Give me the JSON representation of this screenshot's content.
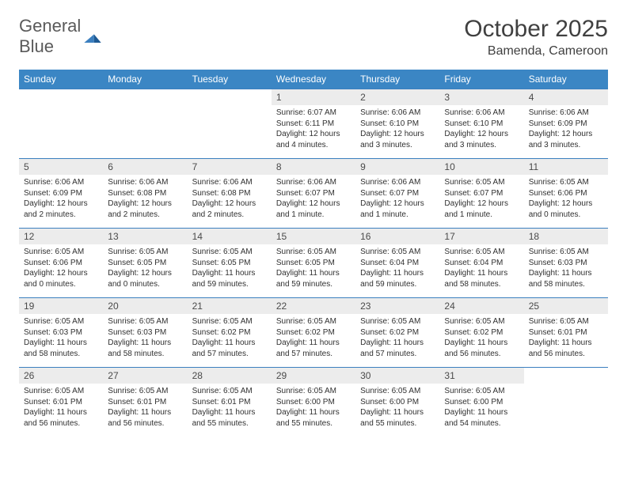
{
  "logo": {
    "text_general": "General",
    "text_blue": "Blue"
  },
  "title": "October 2025",
  "location": "Bamenda, Cameroon",
  "colors": {
    "header_bg": "#3b86c4",
    "header_text": "#ffffff",
    "numrow_bg": "#ececec",
    "border": "#3b7fbf",
    "body_text": "#303030",
    "title_text": "#404040"
  },
  "weekdays": [
    "Sunday",
    "Monday",
    "Tuesday",
    "Wednesday",
    "Thursday",
    "Friday",
    "Saturday"
  ],
  "weeks": [
    [
      {
        "day": "",
        "sunrise": "",
        "sunset": "",
        "daylight": ""
      },
      {
        "day": "",
        "sunrise": "",
        "sunset": "",
        "daylight": ""
      },
      {
        "day": "",
        "sunrise": "",
        "sunset": "",
        "daylight": ""
      },
      {
        "day": "1",
        "sunrise": "Sunrise: 6:07 AM",
        "sunset": "Sunset: 6:11 PM",
        "daylight": "Daylight: 12 hours and 4 minutes."
      },
      {
        "day": "2",
        "sunrise": "Sunrise: 6:06 AM",
        "sunset": "Sunset: 6:10 PM",
        "daylight": "Daylight: 12 hours and 3 minutes."
      },
      {
        "day": "3",
        "sunrise": "Sunrise: 6:06 AM",
        "sunset": "Sunset: 6:10 PM",
        "daylight": "Daylight: 12 hours and 3 minutes."
      },
      {
        "day": "4",
        "sunrise": "Sunrise: 6:06 AM",
        "sunset": "Sunset: 6:09 PM",
        "daylight": "Daylight: 12 hours and 3 minutes."
      }
    ],
    [
      {
        "day": "5",
        "sunrise": "Sunrise: 6:06 AM",
        "sunset": "Sunset: 6:09 PM",
        "daylight": "Daylight: 12 hours and 2 minutes."
      },
      {
        "day": "6",
        "sunrise": "Sunrise: 6:06 AM",
        "sunset": "Sunset: 6:08 PM",
        "daylight": "Daylight: 12 hours and 2 minutes."
      },
      {
        "day": "7",
        "sunrise": "Sunrise: 6:06 AM",
        "sunset": "Sunset: 6:08 PM",
        "daylight": "Daylight: 12 hours and 2 minutes."
      },
      {
        "day": "8",
        "sunrise": "Sunrise: 6:06 AM",
        "sunset": "Sunset: 6:07 PM",
        "daylight": "Daylight: 12 hours and 1 minute."
      },
      {
        "day": "9",
        "sunrise": "Sunrise: 6:06 AM",
        "sunset": "Sunset: 6:07 PM",
        "daylight": "Daylight: 12 hours and 1 minute."
      },
      {
        "day": "10",
        "sunrise": "Sunrise: 6:05 AM",
        "sunset": "Sunset: 6:07 PM",
        "daylight": "Daylight: 12 hours and 1 minute."
      },
      {
        "day": "11",
        "sunrise": "Sunrise: 6:05 AM",
        "sunset": "Sunset: 6:06 PM",
        "daylight": "Daylight: 12 hours and 0 minutes."
      }
    ],
    [
      {
        "day": "12",
        "sunrise": "Sunrise: 6:05 AM",
        "sunset": "Sunset: 6:06 PM",
        "daylight": "Daylight: 12 hours and 0 minutes."
      },
      {
        "day": "13",
        "sunrise": "Sunrise: 6:05 AM",
        "sunset": "Sunset: 6:05 PM",
        "daylight": "Daylight: 12 hours and 0 minutes."
      },
      {
        "day": "14",
        "sunrise": "Sunrise: 6:05 AM",
        "sunset": "Sunset: 6:05 PM",
        "daylight": "Daylight: 11 hours and 59 minutes."
      },
      {
        "day": "15",
        "sunrise": "Sunrise: 6:05 AM",
        "sunset": "Sunset: 6:05 PM",
        "daylight": "Daylight: 11 hours and 59 minutes."
      },
      {
        "day": "16",
        "sunrise": "Sunrise: 6:05 AM",
        "sunset": "Sunset: 6:04 PM",
        "daylight": "Daylight: 11 hours and 59 minutes."
      },
      {
        "day": "17",
        "sunrise": "Sunrise: 6:05 AM",
        "sunset": "Sunset: 6:04 PM",
        "daylight": "Daylight: 11 hours and 58 minutes."
      },
      {
        "day": "18",
        "sunrise": "Sunrise: 6:05 AM",
        "sunset": "Sunset: 6:03 PM",
        "daylight": "Daylight: 11 hours and 58 minutes."
      }
    ],
    [
      {
        "day": "19",
        "sunrise": "Sunrise: 6:05 AM",
        "sunset": "Sunset: 6:03 PM",
        "daylight": "Daylight: 11 hours and 58 minutes."
      },
      {
        "day": "20",
        "sunrise": "Sunrise: 6:05 AM",
        "sunset": "Sunset: 6:03 PM",
        "daylight": "Daylight: 11 hours and 58 minutes."
      },
      {
        "day": "21",
        "sunrise": "Sunrise: 6:05 AM",
        "sunset": "Sunset: 6:02 PM",
        "daylight": "Daylight: 11 hours and 57 minutes."
      },
      {
        "day": "22",
        "sunrise": "Sunrise: 6:05 AM",
        "sunset": "Sunset: 6:02 PM",
        "daylight": "Daylight: 11 hours and 57 minutes."
      },
      {
        "day": "23",
        "sunrise": "Sunrise: 6:05 AM",
        "sunset": "Sunset: 6:02 PM",
        "daylight": "Daylight: 11 hours and 57 minutes."
      },
      {
        "day": "24",
        "sunrise": "Sunrise: 6:05 AM",
        "sunset": "Sunset: 6:02 PM",
        "daylight": "Daylight: 11 hours and 56 minutes."
      },
      {
        "day": "25",
        "sunrise": "Sunrise: 6:05 AM",
        "sunset": "Sunset: 6:01 PM",
        "daylight": "Daylight: 11 hours and 56 minutes."
      }
    ],
    [
      {
        "day": "26",
        "sunrise": "Sunrise: 6:05 AM",
        "sunset": "Sunset: 6:01 PM",
        "daylight": "Daylight: 11 hours and 56 minutes."
      },
      {
        "day": "27",
        "sunrise": "Sunrise: 6:05 AM",
        "sunset": "Sunset: 6:01 PM",
        "daylight": "Daylight: 11 hours and 56 minutes."
      },
      {
        "day": "28",
        "sunrise": "Sunrise: 6:05 AM",
        "sunset": "Sunset: 6:01 PM",
        "daylight": "Daylight: 11 hours and 55 minutes."
      },
      {
        "day": "29",
        "sunrise": "Sunrise: 6:05 AM",
        "sunset": "Sunset: 6:00 PM",
        "daylight": "Daylight: 11 hours and 55 minutes."
      },
      {
        "day": "30",
        "sunrise": "Sunrise: 6:05 AM",
        "sunset": "Sunset: 6:00 PM",
        "daylight": "Daylight: 11 hours and 55 minutes."
      },
      {
        "day": "31",
        "sunrise": "Sunrise: 6:05 AM",
        "sunset": "Sunset: 6:00 PM",
        "daylight": "Daylight: 11 hours and 54 minutes."
      },
      {
        "day": "",
        "sunrise": "",
        "sunset": "",
        "daylight": ""
      }
    ]
  ]
}
